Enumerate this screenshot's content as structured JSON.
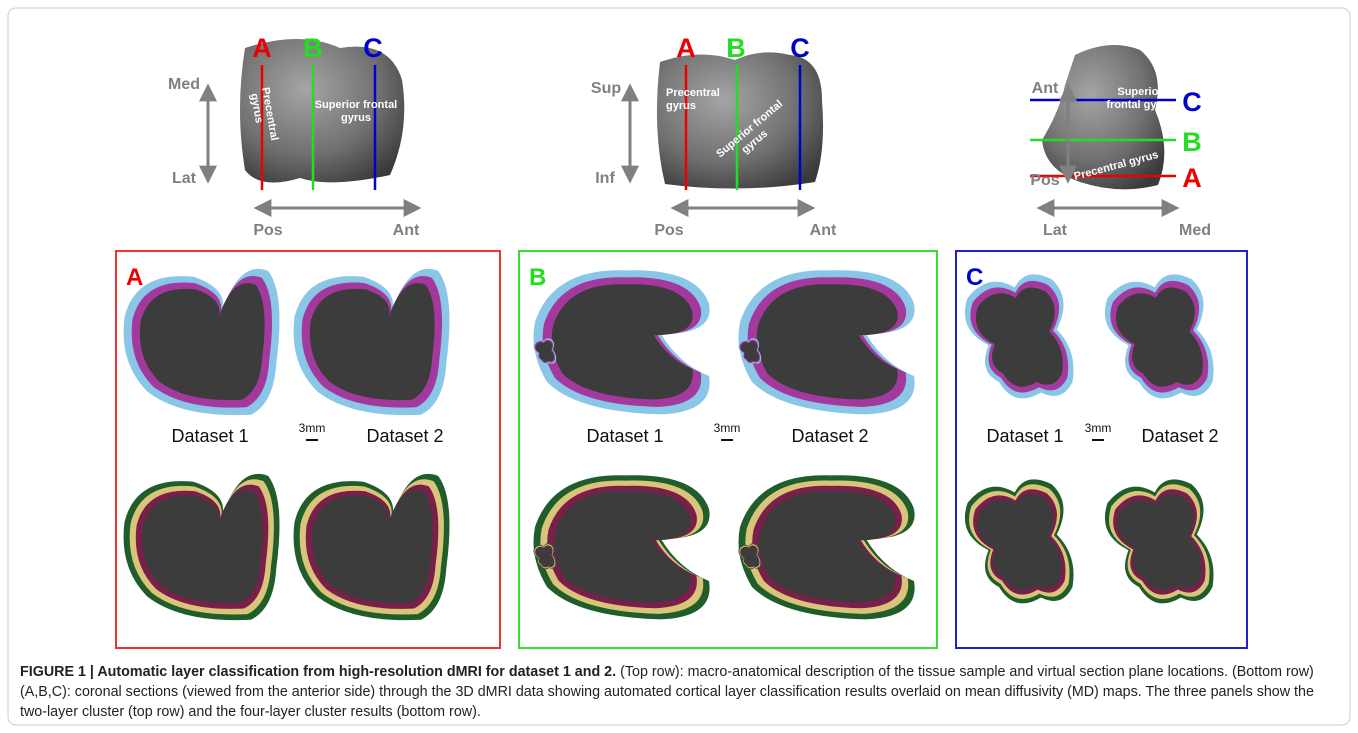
{
  "views": [
    {
      "planes": [
        "A",
        "B",
        "C"
      ],
      "vertical": [
        "Med",
        "Lat"
      ],
      "horizontal": [
        "Pos",
        "Ant"
      ],
      "regions": [
        [
          "Precentral",
          "gyrus"
        ],
        [
          "Superior frontal",
          "gyrus"
        ]
      ]
    },
    {
      "planes": [
        "A",
        "B",
        "C"
      ],
      "vertical": [
        "Sup",
        "Inf"
      ],
      "horizontal": [
        "Pos",
        "Ant"
      ],
      "regions": [
        [
          "Precentral",
          "gyrus"
        ],
        [
          "Superior frontal",
          "gyrus"
        ]
      ]
    },
    {
      "planes": [
        "C",
        "B",
        "A"
      ],
      "vertical": [
        "Ant",
        "Pos"
      ],
      "horizontal": [
        "Lat",
        "Med"
      ],
      "regions": [
        [
          "Superior",
          "frontal gyrus"
        ],
        [
          "Precentral gyrus"
        ]
      ]
    }
  ],
  "panels": [
    {
      "letter": "A",
      "datasets": [
        "Dataset 1",
        "Dataset 2"
      ],
      "scale": "3mm"
    },
    {
      "letter": "B",
      "datasets": [
        "Dataset 1",
        "Dataset 2"
      ],
      "scale": "3mm"
    },
    {
      "letter": "C",
      "datasets": [
        "Dataset 1",
        "Dataset 2"
      ],
      "scale": "3mm"
    }
  ],
  "caption": {
    "title": "FIGURE 1 | Automatic layer classification from high-resolution dMRI for dataset 1 and 2.",
    "body": " (Top row): macro-anatomical description of the tissue sample and virtual section plane locations. (Bottom row) (A,B,C): coronal sections (viewed from the anterior side) through the 3D dMRI data showing automated cortical layer classification results overlaid on mean diffusivity (MD) maps. The three panels show the two-layer cluster (top row) and the four-layer cluster results (bottom row)."
  }
}
